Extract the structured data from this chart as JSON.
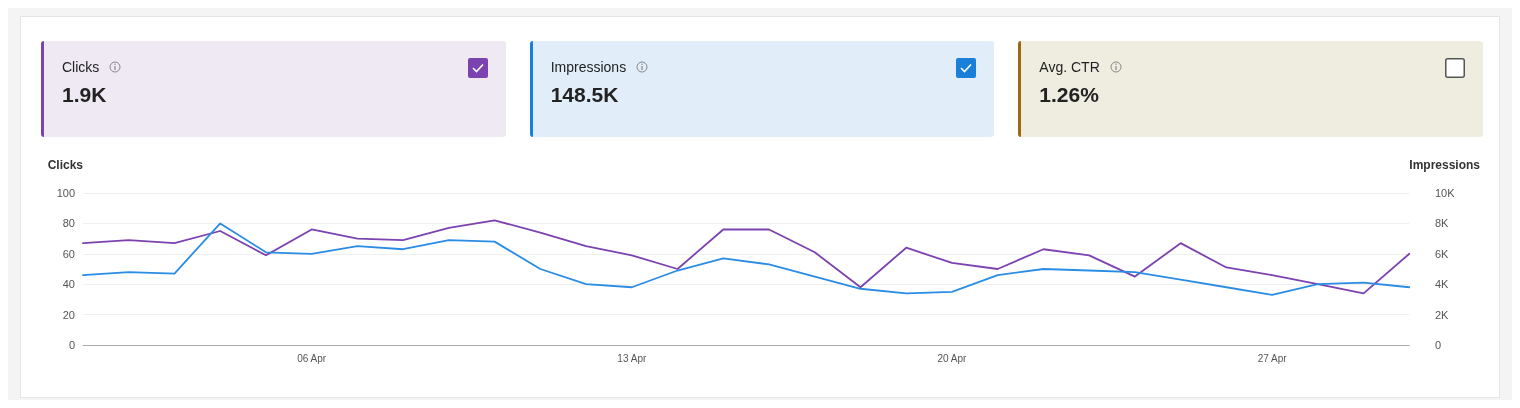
{
  "chart_data": [
    {
      "type": "other",
      "title": "Clicks",
      "annotations": [
        "1.9K"
      ]
    },
    {
      "type": "other",
      "title": "Impressions",
      "annotations": [
        "148.5K"
      ]
    },
    {
      "type": "other",
      "title": "Avg. CTR",
      "annotations": [
        "1.26%"
      ]
    },
    {
      "type": "line",
      "ylabel": "Clicks",
      "y2label": "Impressions",
      "x": [
        "--04-01",
        "--04-02",
        "--04-03",
        "--04-04",
        "--04-05",
        "--04-06",
        "--04-07",
        "--04-08",
        "--04-09",
        "--04-10",
        "--04-11",
        "--04-12",
        "--04-13",
        "--04-14",
        "--04-15",
        "--04-16",
        "--04-17",
        "--04-18",
        "--04-19",
        "--04-20",
        "--04-21",
        "--04-22",
        "--04-23",
        "--04-24",
        "--04-25",
        "--04-26",
        "--04-27",
        "--04-28",
        "--04-29",
        "--04-30"
      ],
      "series": [
        {
          "color": "#7b42b0",
          "values": [
            67,
            69,
            67,
            75,
            59,
            76,
            70,
            69,
            77,
            82,
            74,
            65,
            59,
            50,
            76,
            76,
            61,
            38,
            64,
            54,
            50,
            63,
            59,
            45,
            67,
            51,
            46,
            40,
            34,
            60
          ]
        },
        {
          "color": "#2b8ce6",
          "axis": "y2",
          "values": [
            4600,
            4800,
            4700,
            8000,
            6100,
            6000,
            6500,
            6300,
            6900,
            6800,
            5000,
            4000,
            3800,
            4900,
            5700,
            5300,
            4500,
            3700,
            3400,
            3500,
            4600,
            5000,
            4900,
            4800,
            4300,
            3800,
            3300,
            4000,
            4100,
            3800
          ]
        }
      ],
      "xlim": [
        "--04-01",
        "--04-30"
      ],
      "xticks": [
        {
          "value": "--04-06",
          "label": "06 Apr"
        },
        {
          "value": "--04-13",
          "label": "13 Apr"
        },
        {
          "value": "--04-20",
          "label": "20 Apr"
        },
        {
          "value": "--04-27",
          "label": "27 Apr"
        }
      ],
      "ylim": [
        0,
        100
      ],
      "yticks": [
        0,
        20,
        40,
        60,
        80,
        100
      ],
      "y2lim": [
        0,
        10000
      ],
      "y2ticks": [
        0,
        {
          "value": 2000,
          "label": "2K"
        },
        {
          "value": 4000,
          "label": "4K"
        },
        {
          "value": 6000,
          "label": "6K"
        },
        {
          "value": 8000,
          "label": "8K"
        },
        {
          "value": 10000,
          "label": "10K"
        }
      ],
      "grid": "y",
      "marker": "none",
      "line_style": "solid"
    }
  ]
}
